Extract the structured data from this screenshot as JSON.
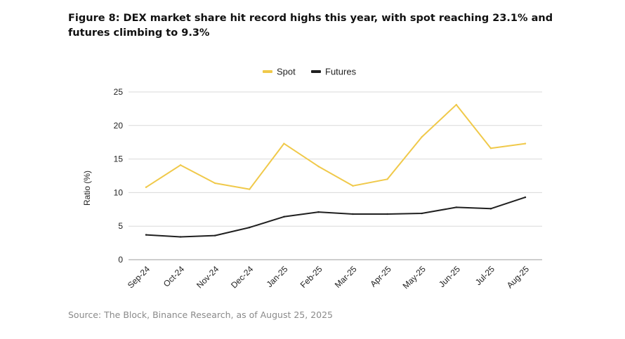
{
  "title": "Figure 8: DEX market share hit record highs this year, with spot reaching 23.1% and futures climbing to 9.3%",
  "source": "Source: The Block, Binance Research, as of August 25, 2025",
  "chart_data": {
    "type": "line",
    "categories": [
      "Sep-24",
      "Oct-24",
      "Nov-24",
      "Dec-24",
      "Jan-25",
      "Feb-25",
      "Mar-25",
      "Apr-25",
      "May-25",
      "Jun-25",
      "Jul-25",
      "Aug-25"
    ],
    "series": [
      {
        "name": "Spot",
        "color": "#f0c94a",
        "values": [
          10.8,
          14.1,
          11.4,
          10.5,
          17.3,
          13.9,
          11.0,
          12.0,
          18.3,
          23.1,
          16.6,
          17.3
        ]
      },
      {
        "name": "Futures",
        "color": "#1f1f1f",
        "values": [
          3.7,
          3.4,
          3.6,
          4.8,
          6.4,
          7.1,
          6.8,
          6.8,
          6.9,
          7.8,
          7.6,
          9.3
        ]
      }
    ],
    "xlabel": "",
    "ylabel": "Ratio (%)",
    "ylim": [
      0,
      25
    ],
    "yticks": [
      0,
      5,
      10,
      15,
      20,
      25
    ],
    "grid": true,
    "legend_position": "top-center"
  }
}
